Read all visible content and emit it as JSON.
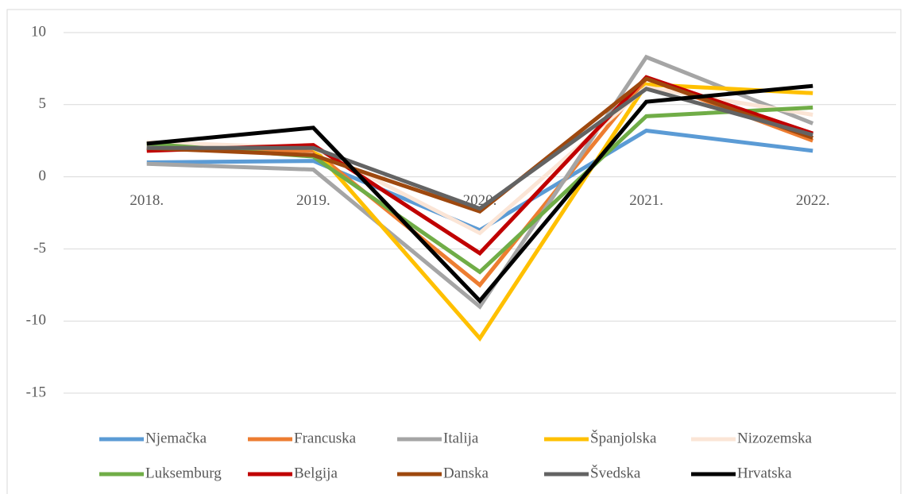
{
  "chart_data": {
    "type": "line",
    "categories": [
      "2018.",
      "2019.",
      "2020.",
      "2021.",
      "2022."
    ],
    "series": [
      {
        "name": "Njemačka",
        "color": "#5b9bd5",
        "values": [
          1.0,
          1.1,
          -3.7,
          3.2,
          1.8
        ]
      },
      {
        "name": "Francuska",
        "color": "#ed7d31",
        "values": [
          1.9,
          1.8,
          -7.5,
          6.8,
          2.5
        ]
      },
      {
        "name": "Italija",
        "color": "#a5a5a5",
        "values": [
          0.9,
          0.5,
          -9.0,
          8.3,
          3.7
        ]
      },
      {
        "name": "Španjolska",
        "color": "#ffc000",
        "values": [
          2.3,
          2.0,
          -11.2,
          6.4,
          5.8
        ]
      },
      {
        "name": "Nizozemska",
        "color": "#fbe5d6",
        "values": [
          2.4,
          2.0,
          -3.9,
          6.2,
          4.3
        ]
      },
      {
        "name": "Luksemburg",
        "color": "#70ad47",
        "values": [
          2.3,
          1.4,
          -6.6,
          4.2,
          4.8
        ]
      },
      {
        "name": "Belgija",
        "color": "#c00000",
        "values": [
          1.8,
          2.2,
          -5.3,
          6.9,
          3.0
        ]
      },
      {
        "name": "Danska",
        "color": "#9e480e",
        "values": [
          2.0,
          1.5,
          -2.4,
          6.8,
          2.7
        ]
      },
      {
        "name": "Švedska",
        "color": "#636363",
        "values": [
          2.0,
          2.0,
          -2.2,
          6.1,
          2.9
        ]
      },
      {
        "name": "Hrvatska",
        "color": "#000000",
        "values": [
          2.3,
          3.4,
          -8.6,
          5.2,
          6.3
        ]
      }
    ],
    "ylim": [
      -15,
      10
    ],
    "yticks": [
      -15,
      -10,
      -5,
      0,
      5,
      10
    ],
    "grid": true,
    "legend": "bottom"
  }
}
